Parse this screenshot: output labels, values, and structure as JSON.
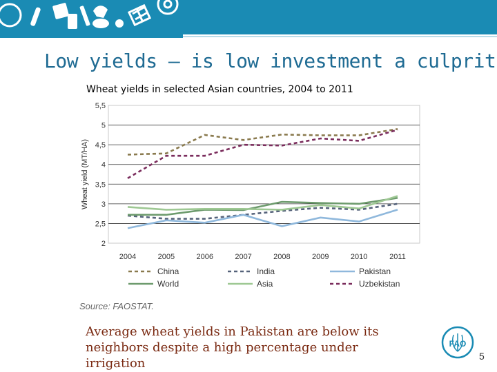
{
  "slide": {
    "title": "Low yields – is low investment a culprit?",
    "chart_title": "Wheat yields in selected Asian countries, 2004 to 2011",
    "source": "Source: FAOSTAT.",
    "caption_line1": "Average wheat yields in Pakistan are below its",
    "caption_line2": "neighbors despite a high percentage under irrigation",
    "page_number": "5",
    "logo_text": "FAO",
    "banner_color": "#1a8bb4",
    "title_color": "#1f6b93",
    "caption_color": "#7a2a12"
  },
  "chart_data": {
    "type": "line",
    "title": "",
    "ylabel": "Wheat yield (MT/HA)",
    "xlabel": "",
    "x": [
      "2004",
      "2005",
      "2006",
      "2007",
      "2008",
      "2009",
      "2010",
      "2011"
    ],
    "yticks": [
      "5,5",
      "5",
      "4,5",
      "4",
      "3,5",
      "3",
      "2,5",
      "2"
    ],
    "ylim": [
      2,
      5.5
    ],
    "grid": "horizontal",
    "legend_position": "bottom",
    "series": [
      {
        "name": "China",
        "values": [
          4.25,
          4.28,
          4.75,
          4.62,
          4.76,
          4.74,
          4.74,
          4.9
        ],
        "color": "#8a7a4e",
        "style": "dashed"
      },
      {
        "name": "India",
        "values": [
          2.7,
          2.62,
          2.62,
          2.72,
          2.82,
          2.9,
          2.85,
          3.0
        ],
        "color": "#55627a",
        "style": "dashed"
      },
      {
        "name": "Pakistan",
        "values": [
          2.38,
          2.58,
          2.52,
          2.72,
          2.43,
          2.65,
          2.55,
          2.85
        ],
        "color": "#8fb8dc",
        "style": "solid"
      },
      {
        "name": "World",
        "values": [
          2.72,
          2.72,
          2.85,
          2.84,
          3.05,
          3.02,
          3.0,
          3.15
        ],
        "color": "#6d9b6d",
        "style": "solid"
      },
      {
        "name": "Asia",
        "values": [
          2.92,
          2.85,
          2.87,
          2.87,
          2.85,
          2.97,
          2.88,
          3.2
        ],
        "color": "#9ec893",
        "style": "solid"
      },
      {
        "name": "Uzbekistan",
        "values": [
          3.65,
          4.22,
          4.22,
          4.5,
          4.48,
          4.66,
          4.6,
          4.88
        ],
        "color": "#7a2c5c",
        "style": "dashed"
      }
    ]
  }
}
